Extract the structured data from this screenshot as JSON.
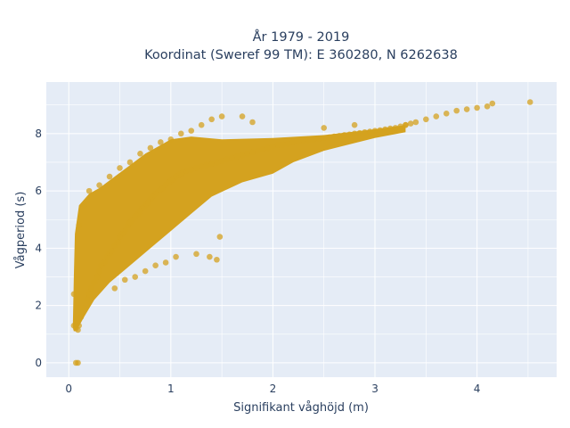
{
  "chart_data": {
    "type": "scatter",
    "title_line1": "År 1979 - 2019",
    "title_line2": "Koordinat (Sweref 99 TM): E 360280, N 6262638",
    "xlabel": "Signifikant våghöjd (m)",
    "ylabel": "Vågperiod (s)",
    "xlim": [
      -0.22,
      4.78
    ],
    "ylim": [
      -0.5,
      9.8
    ],
    "x_ticks": [
      "0",
      "1",
      "2",
      "3",
      "4"
    ],
    "x_tick_values": [
      0,
      1,
      2,
      3,
      4
    ],
    "y_ticks": [
      "0",
      "2",
      "4",
      "6",
      "8"
    ],
    "y_tick_values": [
      0,
      2,
      4,
      6,
      8
    ],
    "grid": true,
    "legend": "none",
    "marker_color": "#d4a21f",
    "background_color": "#e5ecf6",
    "series": [
      {
        "name": "",
        "x": [
          0.05,
          0.07,
          0.09,
          0.1,
          0.12,
          0.15,
          0.18,
          0.2,
          0.22,
          0.25,
          0.28,
          0.3,
          0.32,
          0.35,
          0.38,
          0.4,
          0.42,
          0.45,
          0.48,
          0.5,
          0.52,
          0.55,
          0.58,
          0.6,
          0.62,
          0.65,
          0.68,
          0.7,
          0.72,
          0.75,
          0.78,
          0.8,
          0.82,
          0.85,
          0.88,
          0.9,
          0.92,
          0.95,
          0.98,
          1.0,
          1.02,
          1.05,
          1.08,
          1.1,
          1.12,
          1.15,
          1.2,
          1.25,
          1.3,
          1.35,
          1.4,
          1.45,
          1.5,
          1.55,
          1.6,
          1.65,
          1.7,
          1.75,
          1.8,
          1.85,
          1.9,
          1.95,
          2.0,
          2.05,
          2.1,
          2.15,
          2.2,
          2.25,
          2.3,
          2.35,
          2.4,
          2.45,
          2.5,
          2.55,
          2.6,
          2.65,
          2.7,
          2.75,
          2.8,
          2.85,
          2.9,
          2.95,
          3.0,
          3.05,
          3.1,
          3.15,
          3.2,
          3.25,
          3.3,
          3.35,
          3.4,
          3.5,
          3.6,
          3.7,
          3.8,
          3.9,
          4.0,
          4.1,
          4.15,
          4.52,
          0.07,
          0.09,
          0.05,
          0.1,
          0.15,
          0.2,
          0.3,
          0.4,
          0.5,
          0.6,
          0.7,
          0.8,
          0.9,
          1.0,
          1.1,
          1.2,
          1.3,
          1.4,
          1.5,
          0.45,
          0.55,
          0.65,
          0.75,
          0.85,
          0.95,
          1.05,
          1.25,
          1.38,
          1.45,
          1.48,
          2.5,
          2.8,
          1.7,
          1.8,
          3.3
        ],
        "y": [
          1.3,
          1.2,
          1.15,
          1.3,
          1.6,
          1.9,
          2.2,
          2.4,
          2.6,
          2.8,
          3.0,
          3.2,
          3.4,
          3.5,
          3.7,
          3.8,
          3.9,
          4.1,
          4.2,
          4.4,
          4.5,
          4.6,
          4.8,
          4.9,
          5.0,
          5.1,
          5.2,
          5.3,
          5.4,
          5.5,
          5.6,
          5.7,
          5.8,
          5.9,
          6.0,
          6.05,
          6.1,
          6.2,
          6.3,
          6.35,
          6.4,
          6.5,
          6.55,
          6.6,
          6.65,
          6.7,
          6.75,
          6.8,
          6.85,
          6.9,
          6.95,
          7.0,
          7.05,
          7.1,
          7.15,
          7.2,
          7.25,
          7.3,
          7.35,
          7.4,
          7.45,
          7.5,
          7.55,
          7.6,
          7.62,
          7.65,
          7.7,
          7.72,
          7.75,
          7.78,
          7.8,
          7.82,
          7.85,
          7.87,
          7.9,
          7.92,
          7.95,
          7.97,
          8.0,
          8.02,
          8.05,
          8.07,
          8.1,
          8.12,
          8.15,
          8.18,
          8.2,
          8.25,
          8.3,
          8.35,
          8.4,
          8.5,
          8.6,
          8.7,
          8.8,
          8.85,
          8.9,
          8.95,
          9.05,
          9.1,
          0.0,
          0.0,
          2.4,
          4.8,
          5.5,
          6.0,
          6.2,
          6.5,
          6.8,
          7.0,
          7.3,
          7.5,
          7.7,
          7.8,
          8.0,
          8.1,
          8.3,
          8.5,
          8.6,
          2.6,
          2.9,
          3.0,
          3.2,
          3.4,
          3.5,
          3.7,
          3.8,
          3.7,
          3.6,
          4.4,
          8.2,
          8.3,
          8.6,
          8.4,
          8.3
        ]
      }
    ]
  }
}
